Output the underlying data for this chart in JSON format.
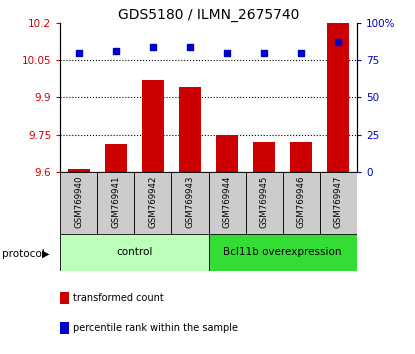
{
  "title": "GDS5180 / ILMN_2675740",
  "samples": [
    "GSM769940",
    "GSM769941",
    "GSM769942",
    "GSM769943",
    "GSM769944",
    "GSM769945",
    "GSM769946",
    "GSM769947"
  ],
  "transformed_count": [
    9.61,
    9.71,
    9.97,
    9.94,
    9.75,
    9.72,
    9.72,
    10.2
  ],
  "percentile_rank": [
    80,
    81,
    84,
    84,
    80,
    80,
    80,
    87
  ],
  "ylim_left": [
    9.6,
    10.2
  ],
  "ylim_right": [
    0,
    100
  ],
  "yticks_left": [
    9.6,
    9.75,
    9.9,
    10.05,
    10.2
  ],
  "ytick_labels_left": [
    "9.6",
    "9.75",
    "9.9",
    "10.05",
    "10.2"
  ],
  "yticks_right": [
    0,
    25,
    50,
    75,
    100
  ],
  "ytick_labels_right": [
    "0",
    "25",
    "50",
    "75",
    "100%"
  ],
  "hlines": [
    9.75,
    9.9,
    10.05
  ],
  "bar_color": "#cc0000",
  "dot_color": "#0000cc",
  "bar_width": 0.6,
  "groups": [
    {
      "label": "control",
      "start": 0,
      "end": 3,
      "color": "#bbffbb"
    },
    {
      "label": "Bcl11b overexpression",
      "start": 4,
      "end": 7,
      "color": "#33dd33"
    }
  ],
  "legend_items": [
    {
      "color": "#cc0000",
      "label": "transformed count"
    },
    {
      "color": "#0000cc",
      "label": "percentile rank within the sample"
    }
  ],
  "title_fontsize": 10,
  "tick_label_fontsize": 7.5,
  "axis_label_color_left": "#cc0000",
  "axis_label_color_right": "#0000cc",
  "sample_box_color": "#cccccc",
  "protocol_label": "protocol"
}
